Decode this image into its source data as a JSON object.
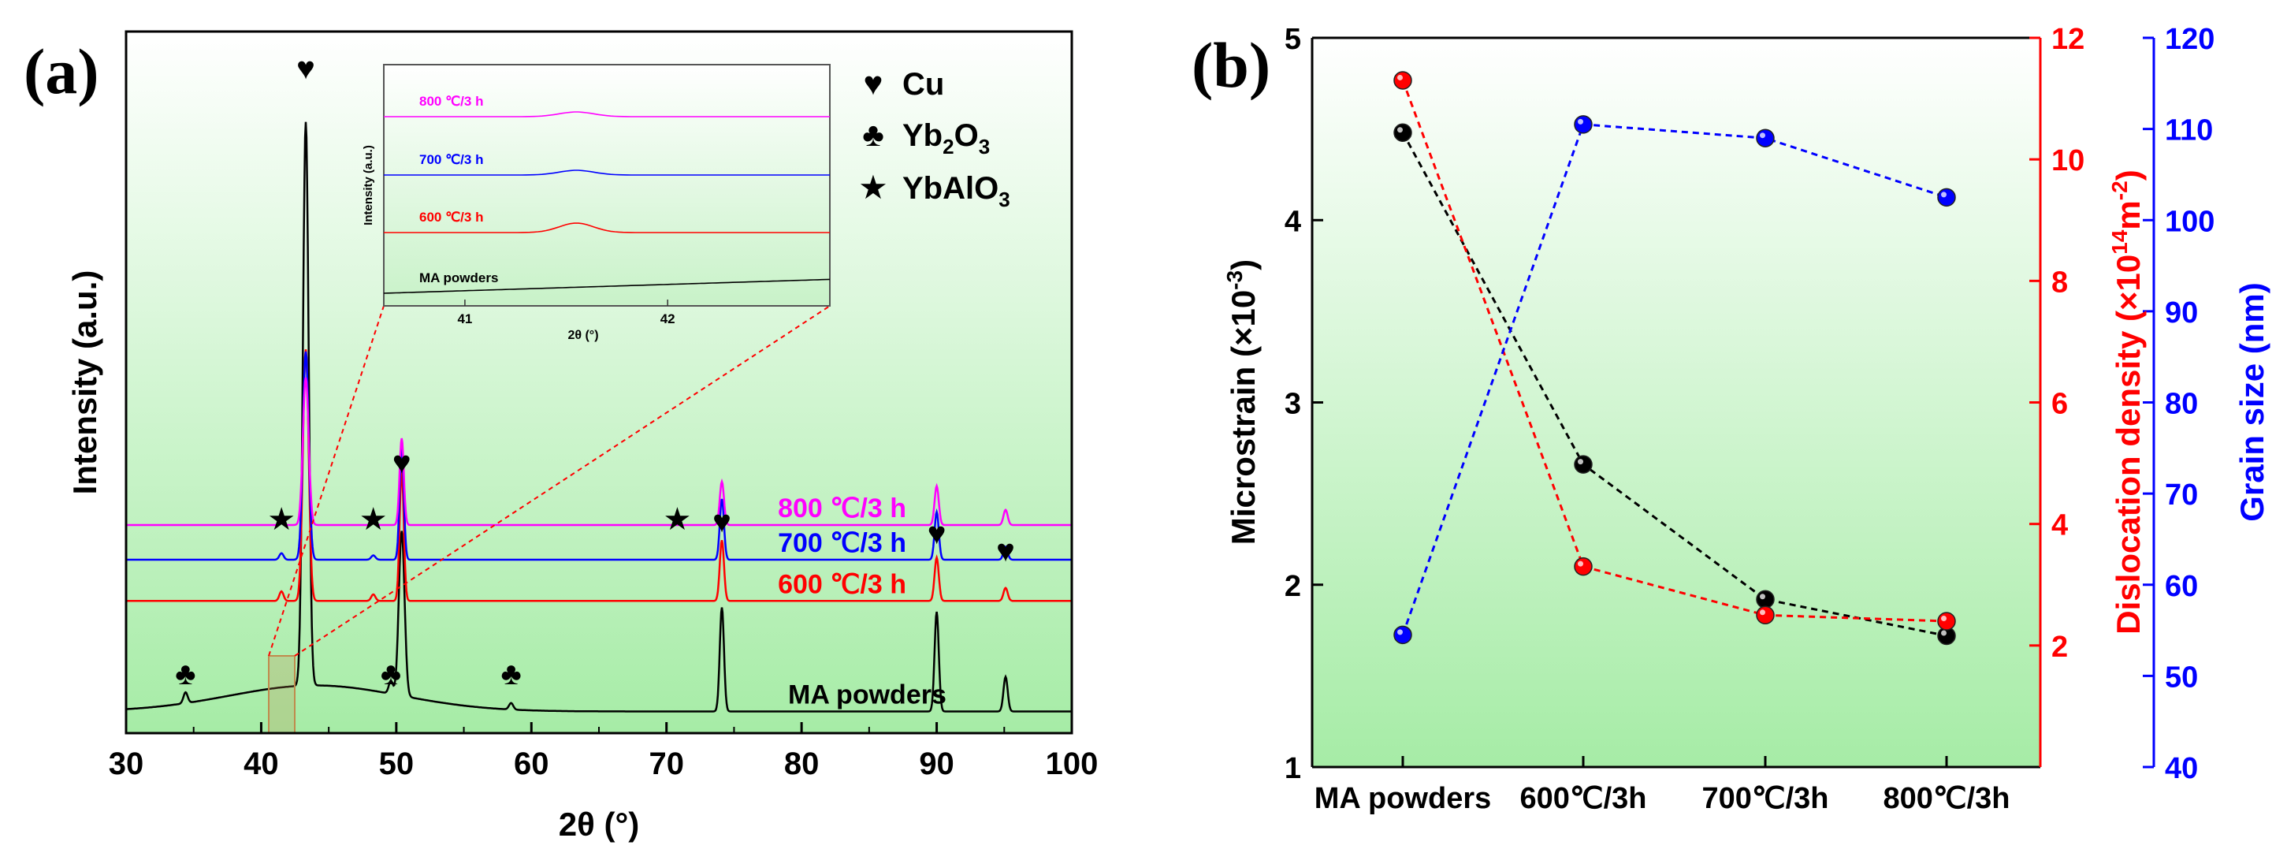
{
  "chart_data": [
    {
      "type": "line",
      "panel_label": "(a)",
      "xlabel": "2θ (°)",
      "ylabel": "Intensity (a.u.)",
      "xlim": [
        30,
        100
      ],
      "xticks": [
        "30",
        "40",
        "50",
        "60",
        "70",
        "80",
        "90",
        "100"
      ],
      "series": [
        {
          "name": "800 ℃/3 h",
          "color": "#ff00ff",
          "baseline": 4.8,
          "peaks": [
            {
              "x": 41.5,
              "h": 0.15
            },
            {
              "x": 43.3,
              "h": 3.4
            },
            {
              "x": 48.3,
              "h": 0.1
            },
            {
              "x": 50.4,
              "h": 2.0
            },
            {
              "x": 74.1,
              "h": 1.0
            },
            {
              "x": 90.0,
              "h": 0.9
            },
            {
              "x": 95.1,
              "h": 0.35
            }
          ]
        },
        {
          "name": "700 ℃/3 h",
          "color": "#0000ff",
          "baseline": 4.0,
          "peaks": [
            {
              "x": 41.5,
              "h": 0.15
            },
            {
              "x": 43.3,
              "h": 4.8
            },
            {
              "x": 48.3,
              "h": 0.1
            },
            {
              "x": 50.4,
              "h": 2.6
            },
            {
              "x": 74.1,
              "h": 1.4
            },
            {
              "x": 90.0,
              "h": 1.1
            },
            {
              "x": 95.1,
              "h": 0.3
            }
          ]
        },
        {
          "name": "600 ℃/3 h",
          "color": "#ff0000",
          "baseline": 3.05,
          "peaks": [
            {
              "x": 41.5,
              "h": 0.22
            },
            {
              "x": 43.3,
              "h": 5.8
            },
            {
              "x": 48.3,
              "h": 0.15
            },
            {
              "x": 50.4,
              "h": 3.0
            },
            {
              "x": 74.1,
              "h": 1.4
            },
            {
              "x": 90.0,
              "h": 1.0
            },
            {
              "x": 95.1,
              "h": 0.3
            }
          ]
        },
        {
          "name": "MA powders",
          "color": "#000000",
          "baseline": 0.5,
          "peaks": [
            {
              "x": 34.4,
              "h": 0.25
            },
            {
              "x": 43.3,
              "h": 13.0
            },
            {
              "x": 49.6,
              "h": 0.3
            },
            {
              "x": 50.4,
              "h": 3.8
            },
            {
              "x": 58.5,
              "h": 0.15
            },
            {
              "x": 74.1,
              "h": 2.4
            },
            {
              "x": 90.0,
              "h": 2.3
            },
            {
              "x": 95.1,
              "h": 0.8
            }
          ]
        }
      ],
      "legend": [
        {
          "symbol": "♥",
          "label": "Cu"
        },
        {
          "symbol": "♣",
          "label": "Yb",
          "sub": "2",
          "mid": "O",
          "sub2": "3"
        },
        {
          "symbol": "★",
          "label": "YbAlO",
          "sub": "3"
        }
      ],
      "peak_markers": [
        {
          "symbol": "♥",
          "x": 43.3
        },
        {
          "symbol": "♥",
          "x": 50.4
        },
        {
          "symbol": "♥",
          "x": 74.1
        },
        {
          "symbol": "♥",
          "x": 90.0
        },
        {
          "symbol": "♥",
          "x": 95.1
        },
        {
          "symbol": "★",
          "x": 41.5
        },
        {
          "symbol": "★",
          "x": 48.3
        },
        {
          "symbol": "★",
          "x": 70.8
        },
        {
          "symbol": "♣",
          "x": 34.4
        },
        {
          "symbol": "♣",
          "x": 49.6
        },
        {
          "symbol": "♣",
          "x": 58.5
        }
      ],
      "inset": {
        "xlabel": "2θ (°)",
        "ylabel": "Intensity (a.u.)",
        "xlim": [
          40.6,
          42.8
        ],
        "xticks": [
          "41",
          "42"
        ],
        "series": [
          {
            "name": "800 ℃/3 h",
            "color": "#ff00ff"
          },
          {
            "name": "700 ℃/3 h",
            "color": "#0000ff"
          },
          {
            "name": "600 ℃/3 h",
            "color": "#ff0000"
          },
          {
            "name": "MA powders",
            "color": "#000000"
          }
        ]
      }
    },
    {
      "type": "line",
      "panel_label": "(b)",
      "categories": [
        "MA powders",
        "600℃/3h",
        "700℃/3h",
        "800℃/3h"
      ],
      "series": [
        {
          "name": "Microstrain (×10⁻³)",
          "axis": "left",
          "color": "#000000",
          "values": [
            4.48,
            2.66,
            1.92,
            1.72
          ]
        },
        {
          "name": "Dislocation density (×10¹⁴m⁻²)",
          "axis": "right1",
          "color": "#ff0000",
          "values": [
            11.3,
            3.3,
            2.5,
            2.4
          ]
        },
        {
          "name": "Grain size (nm)",
          "axis": "right2",
          "color": "#0000ff",
          "values": [
            54.5,
            110.5,
            109.0,
            102.5
          ]
        }
      ],
      "axes": {
        "left": {
          "label": "Microstrain (×10",
          "label_sup": "-3",
          "label_end": ")",
          "ylim": [
            1,
            5
          ],
          "ticks": [
            "1",
            "2",
            "3",
            "4",
            "5"
          ]
        },
        "right1": {
          "label": "Dislocation density (×10",
          "label_sup": "14",
          "label_mid": "m",
          "label_sup2": "-2",
          "label_end": ")",
          "ylim": [
            0,
            12
          ],
          "ticks": [
            "2",
            "4",
            "6",
            "8",
            "10",
            "12"
          ]
        },
        "right2": {
          "label": "Grain size (nm)",
          "ylim": [
            40,
            120
          ],
          "ticks": [
            "40",
            "50",
            "60",
            "70",
            "80",
            "90",
            "100",
            "110",
            "120"
          ]
        }
      }
    }
  ],
  "colors": {
    "bg_top": "#ffffff",
    "bg_bottom": "#a8eda8"
  }
}
